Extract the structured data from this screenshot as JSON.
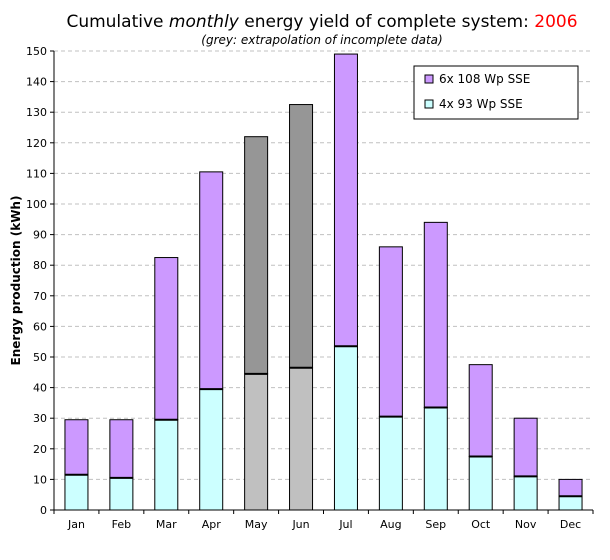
{
  "chart_data": {
    "type": "bar",
    "stacked": true,
    "title": {
      "prefix": "Cumulative ",
      "emphasis": "monthly",
      "suffix": "  energy yield of complete system: ",
      "year": "2006"
    },
    "subtitle": "(grey: extrapolation of incomplete data)",
    "ylabel": "Energy production (kWh)",
    "xlabel": "",
    "ylim": [
      0,
      150
    ],
    "ytick_step": 10,
    "grid": true,
    "legend_position": "top-right",
    "categories": [
      "Jan",
      "Feb",
      "Mar",
      "Apr",
      "May",
      "Jun",
      "Jul",
      "Aug",
      "Sep",
      "Oct",
      "Nov",
      "Dec"
    ],
    "extrapolated": [
      false,
      false,
      false,
      false,
      true,
      true,
      false,
      false,
      false,
      false,
      false,
      false
    ],
    "series": [
      {
        "name": "4x 93 Wp SSE",
        "values": [
          11.5,
          10.5,
          29.5,
          39.5,
          44.5,
          46.5,
          53.5,
          30.5,
          33.5,
          17.5,
          11,
          4.5
        ]
      },
      {
        "name": "6x 108 Wp SSE",
        "values": [
          18,
          19,
          53,
          71,
          77.5,
          86,
          95.5,
          55.5,
          60.5,
          30,
          19,
          5.5
        ]
      }
    ],
    "colors": {
      "series_bottom": "#ccffff",
      "series_top": "#cc99ff",
      "extrapolated_bottom": "#c0c0c0",
      "extrapolated_top": "#969696",
      "year": "#ff0000",
      "grid": "#c0c0c0"
    }
  }
}
